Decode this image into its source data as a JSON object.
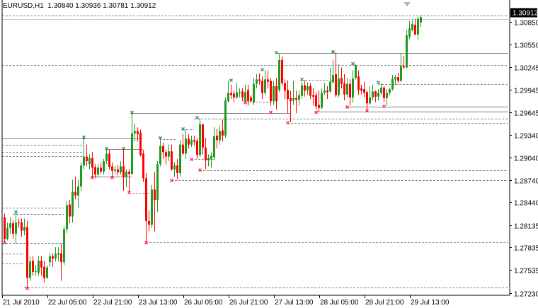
{
  "header": {
    "symbol_timeframe": "EURUSD,H1",
    "ohlc_readout": "1.30840 1.30936 1.30781 1.30912"
  },
  "colors": {
    "bull": "#1f9a1f",
    "bear": "#ff0000",
    "high_marker": "#2a8a6a",
    "low_marker": "#ff2060",
    "line": "#808080",
    "current_price_bg": "#000000"
  },
  "chart_data": {
    "type": "candlestick",
    "symbol": "EURUSD",
    "timeframe": "H1",
    "current_price": "1.30912",
    "ylim": [
      1.2714,
      1.3114
    ],
    "y_ticks": [
      "1.30850",
      "1.30550",
      "1.30245",
      "1.29945",
      "1.29645",
      "1.29340",
      "1.29040",
      "1.28740",
      "1.28440",
      "1.28135",
      "1.27835",
      "1.27535",
      "1.27230"
    ],
    "x_ticks": [
      {
        "label": "21 Jul 2010",
        "bar": 0
      },
      {
        "label": "22 Jul 05:00",
        "bar": 16
      },
      {
        "label": "22 Jul 21:00",
        "bar": 32
      },
      {
        "label": "23 Jul 13:00",
        "bar": 48
      },
      {
        "label": "26 Jul 05:00",
        "bar": 64
      },
      {
        "label": "26 Jul 21:00",
        "bar": 80
      },
      {
        "label": "27 Jul 13:00",
        "bar": 96
      },
      {
        "label": "28 Jul 05:00",
        "bar": 112
      },
      {
        "label": "28 Jul 21:00",
        "bar": 128
      },
      {
        "label": "29 Jul 13:00",
        "bar": 144
      }
    ],
    "ohlc": [
      [
        1.2834,
        1.2839,
        1.2789,
        1.2793
      ],
      [
        1.2824,
        1.2829,
        1.2791,
        1.2795
      ],
      [
        1.2795,
        1.2817,
        1.2793,
        1.281
      ],
      [
        1.281,
        1.2824,
        1.2802,
        1.2816
      ],
      [
        1.2816,
        1.282,
        1.2795,
        1.2802
      ],
      [
        1.2802,
        1.2829,
        1.2789,
        1.2817
      ],
      [
        1.2817,
        1.2822,
        1.281,
        1.2816
      ],
      [
        1.2817,
        1.2822,
        1.2798,
        1.2806
      ],
      [
        1.2806,
        1.2822,
        1.28,
        1.2811
      ],
      [
        1.2811,
        1.2819,
        1.273,
        1.2743
      ],
      [
        1.2743,
        1.2772,
        1.2739,
        1.2765
      ],
      [
        1.2766,
        1.2772,
        1.2746,
        1.2751
      ],
      [
        1.2752,
        1.276,
        1.2746,
        1.2752
      ],
      [
        1.275,
        1.2772,
        1.2746,
        1.2766
      ],
      [
        1.2766,
        1.2772,
        1.2746,
        1.2757
      ],
      [
        1.2758,
        1.2766,
        1.2737,
        1.2743
      ],
      [
        1.2743,
        1.276,
        1.2742,
        1.2757
      ],
      [
        1.2764,
        1.2776,
        1.2758,
        1.2772
      ],
      [
        1.2772,
        1.2776,
        1.2758,
        1.2769
      ],
      [
        1.2769,
        1.2784,
        1.2765,
        1.2775
      ],
      [
        1.2774,
        1.2784,
        1.2765,
        1.2776
      ],
      [
        1.2776,
        1.2789,
        1.2739,
        1.2764
      ],
      [
        1.2764,
        1.2812,
        1.276,
        1.2808
      ],
      [
        1.2808,
        1.2845,
        1.2803,
        1.284
      ],
      [
        1.2841,
        1.2847,
        1.2816,
        1.2825
      ],
      [
        1.2825,
        1.2874,
        1.2817,
        1.2858
      ],
      [
        1.2858,
        1.2878,
        1.2848,
        1.2853
      ],
      [
        1.2853,
        1.2874,
        1.2836,
        1.2865
      ],
      [
        1.2865,
        1.2897,
        1.2859,
        1.2893
      ],
      [
        1.2893,
        1.293,
        1.2888,
        1.2905
      ],
      [
        1.2905,
        1.2921,
        1.2892,
        1.2899
      ],
      [
        1.2895,
        1.2908,
        1.2888,
        1.2903
      ],
      [
        1.2903,
        1.2911,
        1.2878,
        1.289
      ],
      [
        1.2891,
        1.2895,
        1.2876,
        1.2881
      ],
      [
        1.2881,
        1.2895,
        1.2878,
        1.289
      ],
      [
        1.289,
        1.2897,
        1.2882,
        1.2885
      ],
      [
        1.2885,
        1.2902,
        1.2881,
        1.2899
      ],
      [
        1.2899,
        1.2915,
        1.2895,
        1.2909
      ],
      [
        1.2909,
        1.2914,
        1.2888,
        1.2891
      ],
      [
        1.2892,
        1.2897,
        1.2878,
        1.2886
      ],
      [
        1.2886,
        1.2892,
        1.2882,
        1.2888
      ],
      [
        1.2888,
        1.2894,
        1.288,
        1.2884
      ],
      [
        1.2884,
        1.2899,
        1.2881,
        1.2892
      ],
      [
        1.2892,
        1.2915,
        1.2859,
        1.2878
      ],
      [
        1.2878,
        1.2888,
        1.2864,
        1.2885
      ],
      [
        1.2885,
        1.2888,
        1.2858,
        1.2882
      ],
      [
        1.2882,
        1.2963,
        1.288,
        1.2936
      ],
      [
        1.2936,
        1.2949,
        1.2925,
        1.2939
      ],
      [
        1.2939,
        1.2944,
        1.2925,
        1.2935
      ],
      [
        1.2937,
        1.2941,
        1.2905,
        1.2907
      ],
      [
        1.2909,
        1.2914,
        1.2871,
        1.2876
      ],
      [
        1.2876,
        1.2883,
        1.2791,
        1.2819
      ],
      [
        1.2819,
        1.2833,
        1.2805,
        1.2814
      ],
      [
        1.2814,
        1.2867,
        1.281,
        1.2861
      ],
      [
        1.2861,
        1.2884,
        1.2805,
        1.2847
      ],
      [
        1.2847,
        1.2899,
        1.2831,
        1.2895
      ],
      [
        1.2895,
        1.2929,
        1.2892,
        1.2919
      ],
      [
        1.2919,
        1.2924,
        1.2902,
        1.2911
      ],
      [
        1.2911,
        1.2914,
        1.2894,
        1.2905
      ],
      [
        1.2905,
        1.2921,
        1.2899,
        1.2912
      ],
      [
        1.2912,
        1.2921,
        1.2886,
        1.2888
      ],
      [
        1.2888,
        1.2897,
        1.2878,
        1.2893
      ],
      [
        1.2893,
        1.2902,
        1.2874,
        1.2883
      ],
      [
        1.2883,
        1.2927,
        1.2878,
        1.2921
      ],
      [
        1.2921,
        1.2935,
        1.2907,
        1.2909
      ],
      [
        1.2909,
        1.2941,
        1.2902,
        1.2929
      ],
      [
        1.2929,
        1.2935,
        1.2916,
        1.2921
      ],
      [
        1.2921,
        1.2933,
        1.2918,
        1.2927
      ],
      [
        1.2927,
        1.2933,
        1.292,
        1.2925
      ],
      [
        1.2926,
        1.293,
        1.2902,
        1.2907
      ],
      [
        1.2907,
        1.2956,
        1.2905,
        1.2948
      ],
      [
        1.2948,
        1.2948,
        1.2908,
        1.2917
      ],
      [
        1.2917,
        1.293,
        1.2888,
        1.29
      ],
      [
        1.29,
        1.2908,
        1.2892,
        1.2903
      ],
      [
        1.2902,
        1.2911,
        1.289,
        1.2906
      ],
      [
        1.2904,
        1.2944,
        1.2901,
        1.2932
      ],
      [
        1.2933,
        1.2942,
        1.2916,
        1.2927
      ],
      [
        1.2927,
        1.2946,
        1.2921,
        1.2939
      ],
      [
        1.294,
        1.2954,
        1.2925,
        1.2933
      ],
      [
        1.2933,
        1.2984,
        1.293,
        1.298
      ],
      [
        1.2979,
        1.3006,
        1.2977,
        1.299
      ],
      [
        1.299,
        1.3001,
        1.2982,
        1.2987
      ],
      [
        1.2989,
        1.2993,
        1.2977,
        1.2984
      ],
      [
        1.2984,
        1.3004,
        1.2982,
        1.2991
      ],
      [
        1.2991,
        1.2996,
        1.2984,
        1.2991
      ],
      [
        1.2992,
        1.2996,
        1.2979,
        1.2984
      ],
      [
        1.2979,
        1.3001,
        1.2977,
        1.2991
      ],
      [
        1.2994,
        1.3001,
        1.2973,
        1.2979
      ],
      [
        1.2984,
        1.2987,
        1.2978,
        1.2979
      ],
      [
        1.2977,
        1.301,
        1.2974,
        1.3002
      ],
      [
        1.3002,
        1.3015,
        1.2996,
        1.3008
      ],
      [
        1.3008,
        1.3016,
        1.3001,
        1.3006
      ],
      [
        1.3006,
        1.3012,
        1.2982,
        1.299
      ],
      [
        1.299,
        1.302,
        1.2987,
        1.3008
      ],
      [
        1.3008,
        1.302,
        1.2996,
        1.3005
      ],
      [
        1.3006,
        1.301,
        1.2973,
        1.2979
      ],
      [
        1.2979,
        1.3006,
        1.2974,
        1.2999
      ],
      [
        1.2999,
        1.301,
        1.2968,
        1.2979
      ],
      [
        1.2994,
        1.3043,
        1.2991,
        1.3034
      ],
      [
        1.3034,
        1.3039,
        1.2999,
        1.3003
      ],
      [
        1.3003,
        1.3008,
        1.2982,
        1.2993
      ],
      [
        1.2994,
        1.3007,
        1.2963,
        1.2982
      ],
      [
        1.2983,
        1.2993,
        1.2951,
        1.2979
      ],
      [
        1.298,
        1.3006,
        1.2974,
        1.2983
      ],
      [
        1.2983,
        1.2993,
        1.2963,
        1.2981
      ],
      [
        1.2981,
        1.2993,
        1.2973,
        1.2987
      ],
      [
        1.2986,
        1.3005,
        1.2982,
        1.3
      ],
      [
        1.3,
        1.3007,
        1.2985,
        1.2993
      ],
      [
        1.2993,
        1.3004,
        1.2987,
        1.2999
      ],
      [
        1.2999,
        1.3003,
        1.2982,
        1.2986
      ],
      [
        1.2987,
        1.2996,
        1.2973,
        1.2985
      ],
      [
        1.2987,
        1.2991,
        1.2968,
        1.2972
      ],
      [
        1.2974,
        1.2993,
        1.2965,
        1.297
      ],
      [
        1.297,
        1.2996,
        1.2968,
        1.299
      ],
      [
        1.299,
        1.3003,
        1.2987,
        1.2993
      ],
      [
        1.2993,
        1.2999,
        1.2982,
        1.2991
      ],
      [
        1.2992,
        1.3024,
        1.299,
        1.3005
      ],
      [
        1.3004,
        1.3034,
        1.3003,
        1.3014
      ],
      [
        1.3015,
        1.3044,
        1.2984,
        1.2987
      ],
      [
        1.2987,
        1.3029,
        1.2984,
        1.3009
      ],
      [
        1.301,
        1.3024,
        1.2996,
        1.3002
      ],
      [
        1.3003,
        1.3015,
        1.298,
        1.2988
      ],
      [
        1.2988,
        1.301,
        1.2984,
        1.3002
      ],
      [
        1.3002,
        1.3008,
        1.2973,
        1.2984
      ],
      [
        1.2984,
        1.302,
        1.2977,
        1.3009
      ],
      [
        1.301,
        1.3028,
        1.3008,
        1.3027
      ],
      [
        1.3012,
        1.302,
        1.2987,
        1.2994
      ],
      [
        1.2996,
        1.3001,
        1.2988,
        1.2993
      ],
      [
        1.2995,
        1.3005,
        1.2984,
        1.299
      ],
      [
        1.2991,
        1.2993,
        1.2967,
        1.2976
      ],
      [
        1.2976,
        1.2999,
        1.2974,
        1.2984
      ],
      [
        1.2984,
        1.3001,
        1.298,
        1.2992
      ],
      [
        1.2992,
        1.2993,
        1.2978,
        1.2985
      ],
      [
        1.2985,
        1.2995,
        1.298,
        1.299
      ],
      [
        1.299,
        1.3003,
        1.2987,
        1.2997
      ],
      [
        1.2997,
        1.2999,
        1.2978,
        1.2983
      ],
      [
        1.2983,
        1.2995,
        1.2973,
        1.299
      ],
      [
        1.299,
        1.2997,
        1.2987,
        1.2995
      ],
      [
        1.2995,
        1.3014,
        1.2993,
        1.3009
      ],
      [
        1.3008,
        1.3014,
        1.3001,
        1.3011
      ],
      [
        1.3011,
        1.3017,
        1.3003,
        1.3006
      ],
      [
        1.3006,
        1.3043,
        1.3005,
        1.3026
      ],
      [
        1.3026,
        1.3039,
        1.3022,
        1.3024
      ],
      [
        1.3024,
        1.3074,
        1.3023,
        1.3067
      ],
      [
        1.3065,
        1.3086,
        1.3062,
        1.3076
      ],
      [
        1.3074,
        1.3087,
        1.3072,
        1.3082
      ],
      [
        1.3081,
        1.3089,
        1.3067,
        1.3068
      ],
      [
        1.3068,
        1.3092,
        1.3061,
        1.3089
      ],
      [
        1.3084,
        1.30936,
        1.30781,
        1.30912
      ]
    ],
    "high_markers": [
      [
        5,
        1.283
      ],
      [
        29,
        1.293
      ],
      [
        37,
        1.2915
      ],
      [
        43,
        1.2915
      ],
      [
        46,
        1.2963
      ],
      [
        56,
        1.2929
      ],
      [
        64,
        1.2941
      ],
      [
        69,
        1.2956
      ],
      [
        81,
        1.3006
      ],
      [
        92,
        1.302
      ],
      [
        97,
        1.3043
      ],
      [
        106,
        1.3007
      ],
      [
        117,
        1.3044
      ],
      [
        124,
        1.3028
      ],
      [
        133,
        1.3003
      ]
    ],
    "low_markers": [
      [
        1,
        1.2791
      ],
      [
        9,
        1.273
      ],
      [
        32,
        1.2878
      ],
      [
        39,
        1.2878
      ],
      [
        45,
        1.2858
      ],
      [
        51,
        1.2791
      ],
      [
        60,
        1.2874
      ],
      [
        67,
        1.2902
      ],
      [
        70,
        1.2888
      ],
      [
        86,
        1.2978
      ],
      [
        95,
        1.2965
      ],
      [
        101,
        1.2951
      ],
      [
        111,
        1.2965
      ],
      [
        122,
        1.2972
      ],
      [
        129,
        1.2967
      ],
      [
        135,
        1.2973
      ]
    ],
    "levels": [
      {
        "price": 1.3093,
        "from": 0,
        "style": "dashed"
      },
      {
        "price": 1.3089,
        "from": 0,
        "style": "light"
      },
      {
        "price": 1.3043,
        "from": 97,
        "style": "solid"
      },
      {
        "price": 1.3027,
        "from": 0,
        "style": "dashed"
      },
      {
        "price": 1.3007,
        "from": 106,
        "to": 117,
        "style": "dashed"
      },
      {
        "price": 1.3002,
        "from": 133,
        "style": "dashed"
      },
      {
        "price": 1.2978,
        "from": 86,
        "to": 97,
        "style": "dashed"
      },
      {
        "price": 1.2972,
        "from": 122,
        "style": "solid"
      },
      {
        "price": 1.2965,
        "from": 111,
        "style": "solid"
      },
      {
        "price": 1.2963,
        "from": 46,
        "to": 102,
        "style": "solid"
      },
      {
        "price": 1.2956,
        "from": 68,
        "style": "dashed"
      },
      {
        "price": 1.295,
        "from": 101,
        "style": "dashed"
      },
      {
        "price": 1.2941,
        "from": 64,
        "to": 68,
        "style": "dashed"
      },
      {
        "price": 1.2929,
        "from": 0,
        "to": 49,
        "style": "solid"
      },
      {
        "price": 1.2928,
        "from": 57,
        "to": 62,
        "style": "dashed"
      },
      {
        "price": 1.2921,
        "from": 0,
        "to": 29,
        "style": "dashed"
      },
      {
        "price": 1.2915,
        "from": 37,
        "to": 50,
        "style": "solid"
      },
      {
        "price": 1.2911,
        "from": 0,
        "to": 29,
        "style": "dashed"
      },
      {
        "price": 1.2906,
        "from": 0,
        "to": 29,
        "style": "dashed"
      },
      {
        "price": 1.2902,
        "from": 67,
        "to": 75,
        "style": "dashed"
      },
      {
        "price": 1.2887,
        "from": 70,
        "style": "dashed"
      },
      {
        "price": 1.2878,
        "from": 32,
        "to": 46,
        "style": "solid"
      },
      {
        "price": 1.2874,
        "from": 60,
        "style": "dashed"
      },
      {
        "price": 1.2857,
        "from": 45,
        "to": 52,
        "style": "dashed"
      },
      {
        "price": 1.2837,
        "from": 0,
        "to": 22,
        "style": "dashed"
      },
      {
        "price": 1.2828,
        "from": 4,
        "to": 22,
        "style": "dashed"
      },
      {
        "price": 1.2791,
        "from": 51,
        "style": "dashed"
      },
      {
        "price": 1.279,
        "from": 0,
        "to": 22,
        "style": "dashed"
      },
      {
        "price": 1.2775,
        "from": 0,
        "to": 8,
        "style": "dashed"
      },
      {
        "price": 1.2762,
        "from": 0,
        "to": 8,
        "style": "dashed"
      },
      {
        "price": 1.273,
        "from": 8,
        "style": "dashed"
      }
    ]
  }
}
